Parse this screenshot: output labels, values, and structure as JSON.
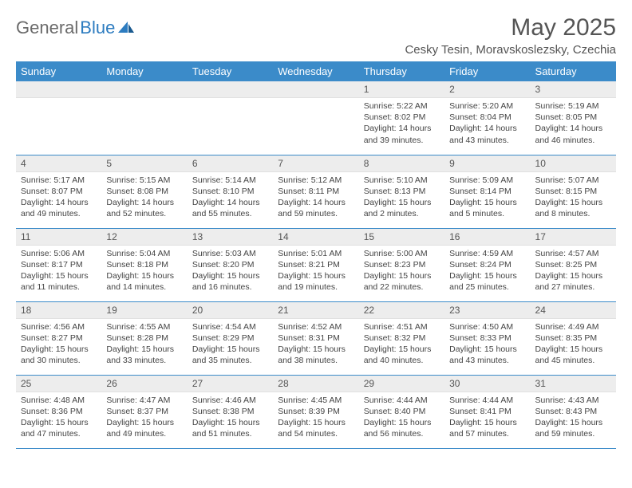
{
  "logo": {
    "word1": "General",
    "word2": "Blue"
  },
  "title": "May 2025",
  "location": "Cesky Tesin, Moravskoslezsky, Czechia",
  "colors": {
    "header_bg": "#3b8bc9",
    "header_text": "#ffffff",
    "daynum_bg": "#ededed",
    "rule": "#3b8bc9",
    "text": "#444444",
    "logo_gray": "#6b6b6b",
    "logo_blue": "#2d7cc0"
  },
  "weekdays": [
    "Sunday",
    "Monday",
    "Tuesday",
    "Wednesday",
    "Thursday",
    "Friday",
    "Saturday"
  ],
  "weeks": [
    [
      null,
      null,
      null,
      null,
      {
        "n": "1",
        "sunrise": "5:22 AM",
        "sunset": "8:02 PM",
        "dl1": "Daylight: 14 hours",
        "dl2": "and 39 minutes."
      },
      {
        "n": "2",
        "sunrise": "5:20 AM",
        "sunset": "8:04 PM",
        "dl1": "Daylight: 14 hours",
        "dl2": "and 43 minutes."
      },
      {
        "n": "3",
        "sunrise": "5:19 AM",
        "sunset": "8:05 PM",
        "dl1": "Daylight: 14 hours",
        "dl2": "and 46 minutes."
      }
    ],
    [
      {
        "n": "4",
        "sunrise": "5:17 AM",
        "sunset": "8:07 PM",
        "dl1": "Daylight: 14 hours",
        "dl2": "and 49 minutes."
      },
      {
        "n": "5",
        "sunrise": "5:15 AM",
        "sunset": "8:08 PM",
        "dl1": "Daylight: 14 hours",
        "dl2": "and 52 minutes."
      },
      {
        "n": "6",
        "sunrise": "5:14 AM",
        "sunset": "8:10 PM",
        "dl1": "Daylight: 14 hours",
        "dl2": "and 55 minutes."
      },
      {
        "n": "7",
        "sunrise": "5:12 AM",
        "sunset": "8:11 PM",
        "dl1": "Daylight: 14 hours",
        "dl2": "and 59 minutes."
      },
      {
        "n": "8",
        "sunrise": "5:10 AM",
        "sunset": "8:13 PM",
        "dl1": "Daylight: 15 hours",
        "dl2": "and 2 minutes."
      },
      {
        "n": "9",
        "sunrise": "5:09 AM",
        "sunset": "8:14 PM",
        "dl1": "Daylight: 15 hours",
        "dl2": "and 5 minutes."
      },
      {
        "n": "10",
        "sunrise": "5:07 AM",
        "sunset": "8:15 PM",
        "dl1": "Daylight: 15 hours",
        "dl2": "and 8 minutes."
      }
    ],
    [
      {
        "n": "11",
        "sunrise": "5:06 AM",
        "sunset": "8:17 PM",
        "dl1": "Daylight: 15 hours",
        "dl2": "and 11 minutes."
      },
      {
        "n": "12",
        "sunrise": "5:04 AM",
        "sunset": "8:18 PM",
        "dl1": "Daylight: 15 hours",
        "dl2": "and 14 minutes."
      },
      {
        "n": "13",
        "sunrise": "5:03 AM",
        "sunset": "8:20 PM",
        "dl1": "Daylight: 15 hours",
        "dl2": "and 16 minutes."
      },
      {
        "n": "14",
        "sunrise": "5:01 AM",
        "sunset": "8:21 PM",
        "dl1": "Daylight: 15 hours",
        "dl2": "and 19 minutes."
      },
      {
        "n": "15",
        "sunrise": "5:00 AM",
        "sunset": "8:23 PM",
        "dl1": "Daylight: 15 hours",
        "dl2": "and 22 minutes."
      },
      {
        "n": "16",
        "sunrise": "4:59 AM",
        "sunset": "8:24 PM",
        "dl1": "Daylight: 15 hours",
        "dl2": "and 25 minutes."
      },
      {
        "n": "17",
        "sunrise": "4:57 AM",
        "sunset": "8:25 PM",
        "dl1": "Daylight: 15 hours",
        "dl2": "and 27 minutes."
      }
    ],
    [
      {
        "n": "18",
        "sunrise": "4:56 AM",
        "sunset": "8:27 PM",
        "dl1": "Daylight: 15 hours",
        "dl2": "and 30 minutes."
      },
      {
        "n": "19",
        "sunrise": "4:55 AM",
        "sunset": "8:28 PM",
        "dl1": "Daylight: 15 hours",
        "dl2": "and 33 minutes."
      },
      {
        "n": "20",
        "sunrise": "4:54 AM",
        "sunset": "8:29 PM",
        "dl1": "Daylight: 15 hours",
        "dl2": "and 35 minutes."
      },
      {
        "n": "21",
        "sunrise": "4:52 AM",
        "sunset": "8:31 PM",
        "dl1": "Daylight: 15 hours",
        "dl2": "and 38 minutes."
      },
      {
        "n": "22",
        "sunrise": "4:51 AM",
        "sunset": "8:32 PM",
        "dl1": "Daylight: 15 hours",
        "dl2": "and 40 minutes."
      },
      {
        "n": "23",
        "sunrise": "4:50 AM",
        "sunset": "8:33 PM",
        "dl1": "Daylight: 15 hours",
        "dl2": "and 43 minutes."
      },
      {
        "n": "24",
        "sunrise": "4:49 AM",
        "sunset": "8:35 PM",
        "dl1": "Daylight: 15 hours",
        "dl2": "and 45 minutes."
      }
    ],
    [
      {
        "n": "25",
        "sunrise": "4:48 AM",
        "sunset": "8:36 PM",
        "dl1": "Daylight: 15 hours",
        "dl2": "and 47 minutes."
      },
      {
        "n": "26",
        "sunrise": "4:47 AM",
        "sunset": "8:37 PM",
        "dl1": "Daylight: 15 hours",
        "dl2": "and 49 minutes."
      },
      {
        "n": "27",
        "sunrise": "4:46 AM",
        "sunset": "8:38 PM",
        "dl1": "Daylight: 15 hours",
        "dl2": "and 51 minutes."
      },
      {
        "n": "28",
        "sunrise": "4:45 AM",
        "sunset": "8:39 PM",
        "dl1": "Daylight: 15 hours",
        "dl2": "and 54 minutes."
      },
      {
        "n": "29",
        "sunrise": "4:44 AM",
        "sunset": "8:40 PM",
        "dl1": "Daylight: 15 hours",
        "dl2": "and 56 minutes."
      },
      {
        "n": "30",
        "sunrise": "4:44 AM",
        "sunset": "8:41 PM",
        "dl1": "Daylight: 15 hours",
        "dl2": "and 57 minutes."
      },
      {
        "n": "31",
        "sunrise": "4:43 AM",
        "sunset": "8:43 PM",
        "dl1": "Daylight: 15 hours",
        "dl2": "and 59 minutes."
      }
    ]
  ],
  "labels": {
    "sunrise": "Sunrise:",
    "sunset": "Sunset:"
  }
}
